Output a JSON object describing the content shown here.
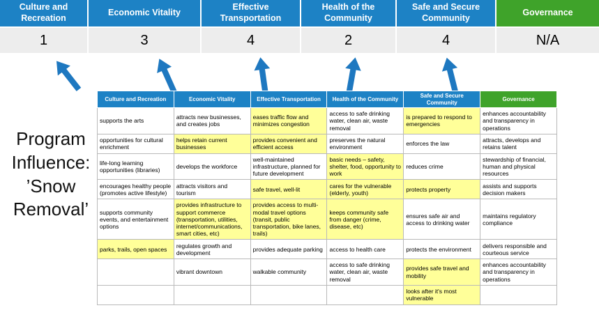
{
  "colors": {
    "header_blue": "#1d82c5",
    "governance_green": "#3fa32a",
    "score_bg": "#ededed",
    "highlight_yellow": "#ffff99",
    "arrow_blue": "#1e78c0",
    "table_border": "#b9b9b9"
  },
  "title": "Program Influence: ’Snow Removal’",
  "summary": {
    "columns": [
      {
        "label": "Culture and Recreation",
        "score": "1"
      },
      {
        "label": "Economic Vitality",
        "score": "3"
      },
      {
        "label": "Effective Transportation",
        "score": "4"
      },
      {
        "label": "Health of the Community",
        "score": "2"
      },
      {
        "label": "Safe and Secure Community",
        "score": "4"
      },
      {
        "label": "Governance",
        "score": "N/A"
      }
    ]
  },
  "matrix": {
    "headers": [
      "Culture and Recreation",
      "Economic Vitality",
      "Effective Transportation",
      "Health of the Community",
      "Safe and Secure Community",
      "Governance"
    ],
    "rows": [
      [
        {
          "text": "supports the arts",
          "highlight": false
        },
        {
          "text": "attracts new businesses, and creates jobs",
          "highlight": false
        },
        {
          "text": "eases traffic flow and minimizes congestion",
          "highlight": true
        },
        {
          "text": "access to safe drinking water, clean air, waste removal",
          "highlight": false
        },
        {
          "text": "is prepared to respond to emergencies",
          "highlight": true
        },
        {
          "text": "enhances accountability and transparency in operations",
          "highlight": false
        }
      ],
      [
        {
          "text": "opportunities for cultural enrichment",
          "highlight": false
        },
        {
          "text": "helps retain current businesses",
          "highlight": true
        },
        {
          "text": "provides convenient and efficient access",
          "highlight": true
        },
        {
          "text": "preserves the natural environment",
          "highlight": false
        },
        {
          "text": "enforces the law",
          "highlight": false
        },
        {
          "text": "attracts, develops and retains talent",
          "highlight": false
        }
      ],
      [
        {
          "text": "life-long learning opportunities (libraries)",
          "highlight": false
        },
        {
          "text": "develops the workforce",
          "highlight": false
        },
        {
          "text": "well-maintained infrastructure, planned for future development",
          "highlight": false
        },
        {
          "text": "basic needs – safety, shelter, food, opportunity to work",
          "highlight": true
        },
        {
          "text": "reduces crime",
          "highlight": false
        },
        {
          "text": "stewardship of financial, human and physical resources",
          "highlight": false
        }
      ],
      [
        {
          "text": "encourages healthy people (promotes active lifestyle)",
          "highlight": false
        },
        {
          "text": "attracts visitors and tourism",
          "highlight": false
        },
        {
          "text": "safe travel, well-lit",
          "highlight": true
        },
        {
          "text": "cares for the vulnerable (elderly, youth)",
          "highlight": true
        },
        {
          "text": "protects property",
          "highlight": true
        },
        {
          "text": "assists and supports decision makers",
          "highlight": false
        }
      ],
      [
        {
          "text": "supports community events, and entertainment options",
          "highlight": false
        },
        {
          "text": "provides infrastructure to support commerce (transportation, utilities, internet/communications, smart cities, etc)",
          "highlight": true
        },
        {
          "text": "provides access to multi-modal travel options (transit, public transportation, bike lanes, trails)",
          "highlight": true
        },
        {
          "text": "keeps community safe from danger (crime, disease, etc)",
          "highlight": true
        },
        {
          "text": "ensures safe air and access to drinking water",
          "highlight": false
        },
        {
          "text": "maintains regulatory compliance",
          "highlight": false
        }
      ],
      [
        {
          "text": "parks, trails, open spaces",
          "highlight": true
        },
        {
          "text": "regulates growth and development",
          "highlight": false
        },
        {
          "text": "provides adequate parking",
          "highlight": false
        },
        {
          "text": "access to health care",
          "highlight": false
        },
        {
          "text": "protects the environment",
          "highlight": false
        },
        {
          "text": "delivers responsible and courteous service",
          "highlight": false
        }
      ],
      [
        {
          "text": "",
          "highlight": false
        },
        {
          "text": "vibrant downtown",
          "highlight": false
        },
        {
          "text": "walkable community",
          "highlight": false
        },
        {
          "text": "access to safe drinking water, clean air, waste removal",
          "highlight": false
        },
        {
          "text": "provides safe travel and mobility",
          "highlight": true
        },
        {
          "text": "enhances accountability and transparency in operations",
          "highlight": false
        }
      ],
      [
        {
          "text": "",
          "highlight": false
        },
        {
          "text": "",
          "highlight": false
        },
        {
          "text": "",
          "highlight": false
        },
        {
          "text": "",
          "highlight": false
        },
        {
          "text": "looks after it's most vulnerable",
          "highlight": true
        },
        {
          "text": "",
          "highlight": false
        }
      ]
    ]
  }
}
